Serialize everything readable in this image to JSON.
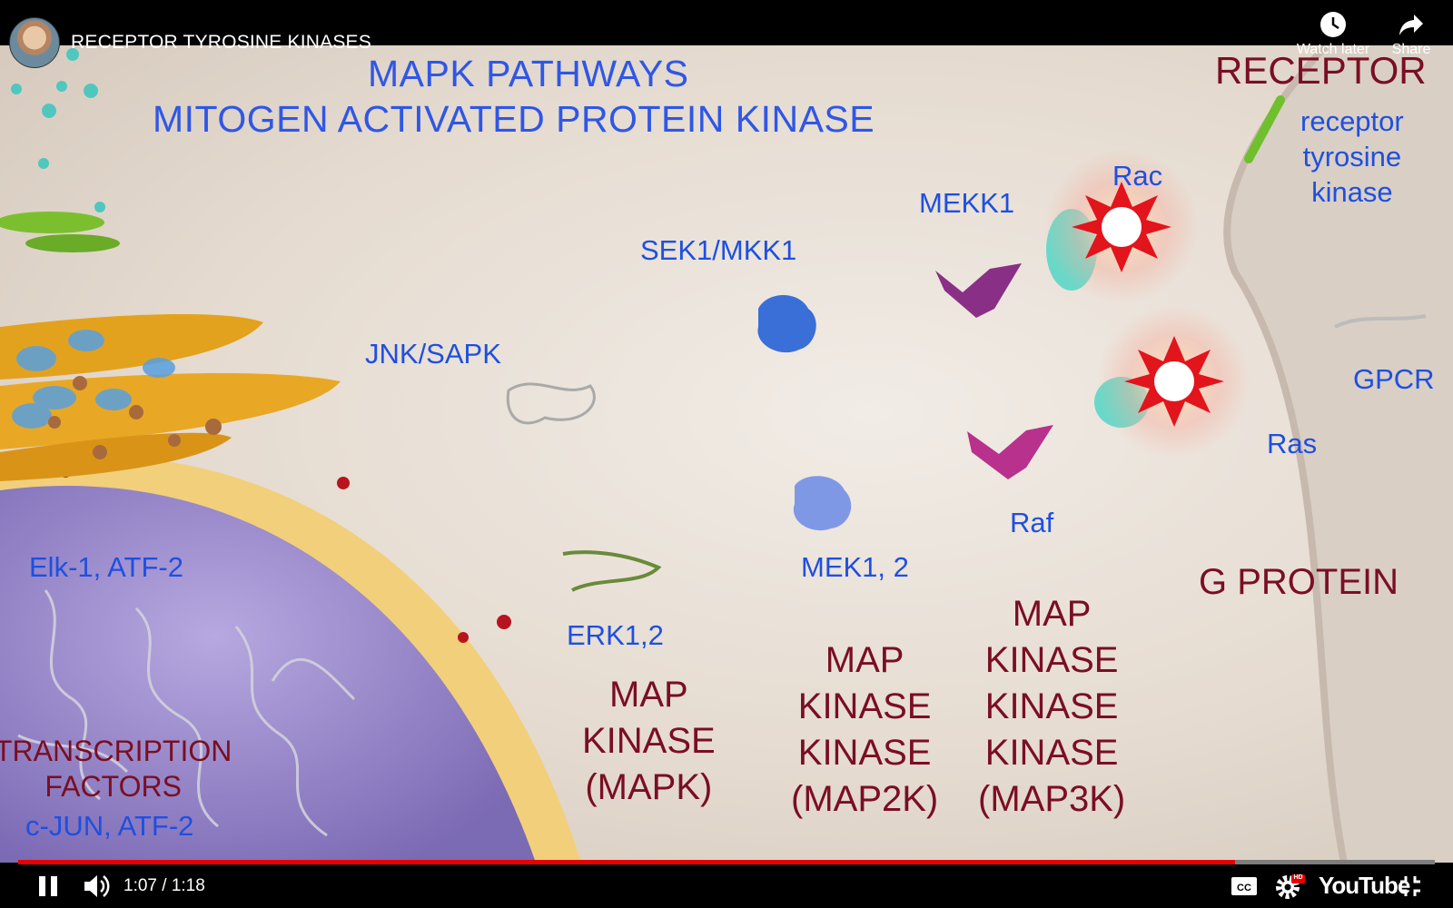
{
  "player": {
    "title": "RECEPTOR TYROSINE KINASES",
    "watch_later_label": "Watch later",
    "share_label": "Share",
    "current_time": "1:07",
    "duration": "1:18",
    "time_separator": "/",
    "progress": 0.859,
    "brand_label": "YouTube",
    "hd_badge": "HD",
    "accent_color": "#e60000"
  },
  "frame": {
    "heading_line1": "MAPK PATHWAYS",
    "heading_line2": "MITOGEN ACTIVATED PROTEIN KINASE",
    "receptor_label": "RECEPTOR",
    "rtk_label": "receptor\ntyrosine\nkinase",
    "labels": {
      "rac": "Rac",
      "mekk1": "MEKK1",
      "sek1": "SEK1/MKK1",
      "jnk": "JNK/SAPK",
      "gpcr": "GPCR",
      "ras": "Ras",
      "raf": "Raf",
      "mek12": "MEK1, 2",
      "erk12": "ERK1,2",
      "elk1": "Elk-1, ATF-2",
      "cjun": "c-JUN, ATF-2"
    },
    "g_protein": "G PROTEIN",
    "map3k": "MAP\nKINASE\nKINASE\nKINASE\n(MAP3K)",
    "map2k": "MAP\nKINASE\nKINASE\n(MAP2K)",
    "mapk": "MAP\nKINASE\n(MAPK)",
    "transcription": "TRANSCRIPTION\nFACTORS"
  }
}
